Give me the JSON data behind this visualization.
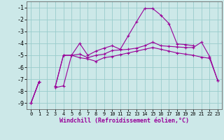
{
  "xlabel": "Windchill (Refroidissement éolien,°C)",
  "background_color": "#cce8e8",
  "grid_color": "#99cccc",
  "line_color": "#990099",
  "x": [
    0,
    1,
    2,
    3,
    4,
    5,
    6,
    7,
    8,
    9,
    10,
    11,
    12,
    13,
    14,
    15,
    16,
    17,
    18,
    19,
    20,
    21,
    22,
    23
  ],
  "line1_y": [
    -9.0,
    -7.2,
    null,
    -7.6,
    -5.0,
    -5.0,
    -4.9,
    -5.2,
    -5.0,
    -4.9,
    -4.6,
    -4.55,
    -4.5,
    -4.4,
    -4.2,
    -3.9,
    -4.2,
    -4.25,
    -4.3,
    -4.35,
    -4.35,
    -3.9,
    -5.1,
    -7.1
  ],
  "line2_y": [
    -9.0,
    -7.2,
    null,
    -7.6,
    -5.0,
    -5.0,
    -4.0,
    -5.0,
    -4.65,
    -4.4,
    -4.2,
    -4.5,
    -3.35,
    -2.2,
    -1.1,
    -1.1,
    -1.65,
    -2.35,
    -4.05,
    -4.1,
    -4.2,
    null,
    null,
    null
  ],
  "line3_y": [
    -9.0,
    -7.2,
    null,
    -7.7,
    -7.55,
    -5.0,
    -5.2,
    -5.3,
    -5.5,
    -5.2,
    -5.1,
    -4.95,
    -4.8,
    -4.65,
    -4.5,
    -4.35,
    -4.5,
    -4.65,
    -4.8,
    -4.9,
    -5.0,
    -5.15,
    -5.25,
    -7.1
  ],
  "ylim": [
    -9.5,
    -0.5
  ],
  "xlim": [
    -0.5,
    23.5
  ],
  "yticks": [
    -9,
    -8,
    -7,
    -6,
    -5,
    -4,
    -3,
    -2,
    -1
  ],
  "xticks": [
    0,
    1,
    2,
    3,
    4,
    5,
    6,
    7,
    8,
    9,
    10,
    11,
    12,
    13,
    14,
    15,
    16,
    17,
    18,
    19,
    20,
    21,
    22,
    23
  ]
}
